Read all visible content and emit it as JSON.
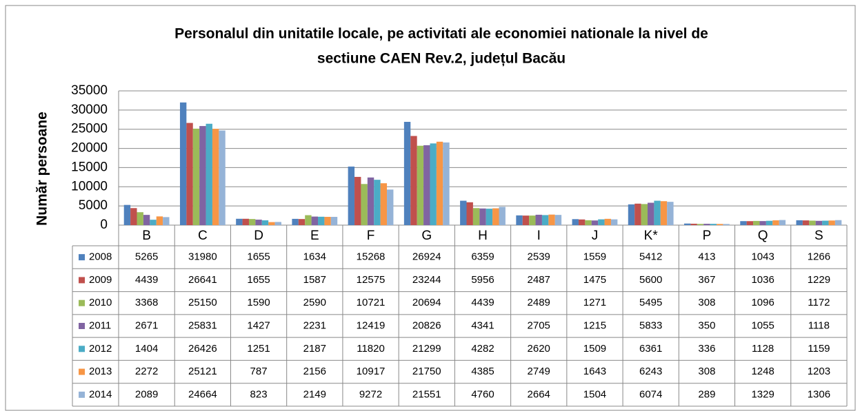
{
  "chart_data": {
    "type": "bar",
    "title": [
      "Personalul din unitatile locale, pe activitati ale economiei nationale la nivel de",
      "sectiune CAEN Rev.2, județul  Bacău"
    ],
    "y_label": "Număr persoane",
    "categories": [
      "B",
      "C",
      "D",
      "E",
      "F",
      "G",
      "H",
      "I",
      "J",
      "K*",
      "P",
      "Q",
      "S"
    ],
    "ylim": [
      0,
      35000
    ],
    "yticks": [
      0,
      5000,
      10000,
      15000,
      20000,
      25000,
      30000,
      35000
    ],
    "grid": true,
    "series": [
      {
        "name": "2008",
        "color": "#4f81bd",
        "values": [
          5265,
          31980,
          1655,
          1634,
          15268,
          26924,
          6359,
          2539,
          1559,
          5412,
          413,
          1043,
          1266
        ]
      },
      {
        "name": "2009",
        "color": "#c0504d",
        "values": [
          4439,
          26641,
          1655,
          1587,
          12575,
          23244,
          5956,
          2487,
          1475,
          5600,
          367,
          1036,
          1229
        ]
      },
      {
        "name": "2010",
        "color": "#9bbb59",
        "values": [
          3368,
          25150,
          1590,
          2590,
          10721,
          20694,
          4439,
          2489,
          1271,
          5495,
          308,
          1096,
          1172
        ]
      },
      {
        "name": "2011",
        "color": "#8064a2",
        "values": [
          2671,
          25831,
          1427,
          2231,
          12419,
          20826,
          4341,
          2705,
          1215,
          5833,
          350,
          1055,
          1118
        ]
      },
      {
        "name": "2012",
        "color": "#4bacc6",
        "values": [
          1404,
          26426,
          1251,
          2187,
          11820,
          21299,
          4282,
          2620,
          1509,
          6361,
          336,
          1128,
          1159
        ]
      },
      {
        "name": "2013",
        "color": "#f79646",
        "values": [
          2272,
          25121,
          787,
          2156,
          10917,
          21750,
          4385,
          2749,
          1643,
          6243,
          308,
          1248,
          1203
        ]
      },
      {
        "name": "2014",
        "color": "#95b3d7",
        "values": [
          2089,
          24664,
          823,
          2149,
          9272,
          21551,
          4760,
          2664,
          1504,
          6074,
          289,
          1329,
          1306
        ]
      }
    ]
  }
}
